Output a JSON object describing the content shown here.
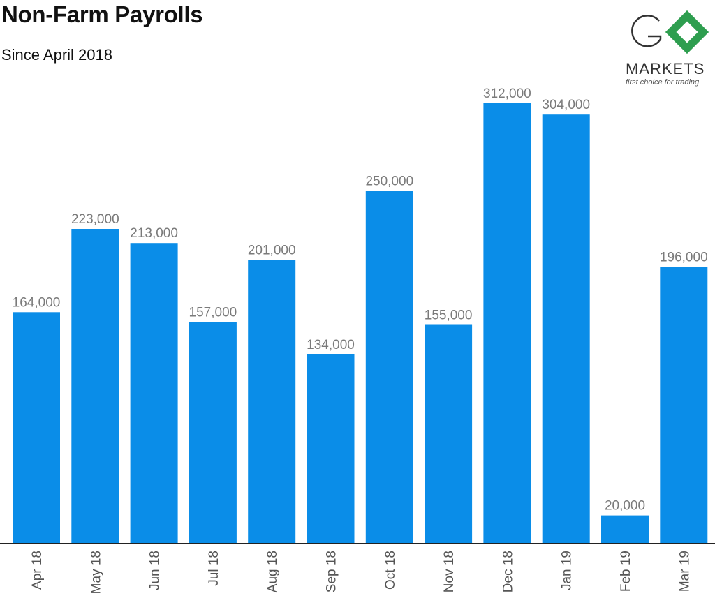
{
  "header": {
    "title": "Non-Farm Payrolls",
    "subtitle": "Since April 2018"
  },
  "logo": {
    "wordmark": "GO MARKETS",
    "line1": "MARKETS",
    "tagline": "first choice for trading",
    "accent": "#2e9e4f"
  },
  "colors": {
    "bar": "#0a8de8",
    "value_label": "#7a7a7a",
    "axis_label": "#555555",
    "axis_line": "#222222"
  },
  "chart_data": {
    "type": "bar",
    "title": "Non-Farm Payrolls",
    "subtitle": "Since April 2018",
    "categories": [
      "Apr 18",
      "May 18",
      "Jun 18",
      "Jul 18",
      "Aug 18",
      "Sep 18",
      "Oct 18",
      "Nov 18",
      "Dec 18",
      "Jan 19",
      "Feb 19",
      "Mar 19"
    ],
    "values": [
      164000,
      223000,
      213000,
      157000,
      201000,
      134000,
      250000,
      155000,
      312000,
      304000,
      20000,
      196000
    ],
    "value_labels": [
      "164,000",
      "223,000",
      "213,000",
      "157,000",
      "201,000",
      "134,000",
      "250,000",
      "155,000",
      "312,000",
      "304,000",
      "20,000",
      "196,000"
    ],
    "xlabel": "",
    "ylabel": "",
    "ylim": [
      0,
      340000
    ],
    "grid": false,
    "legend": "none"
  }
}
